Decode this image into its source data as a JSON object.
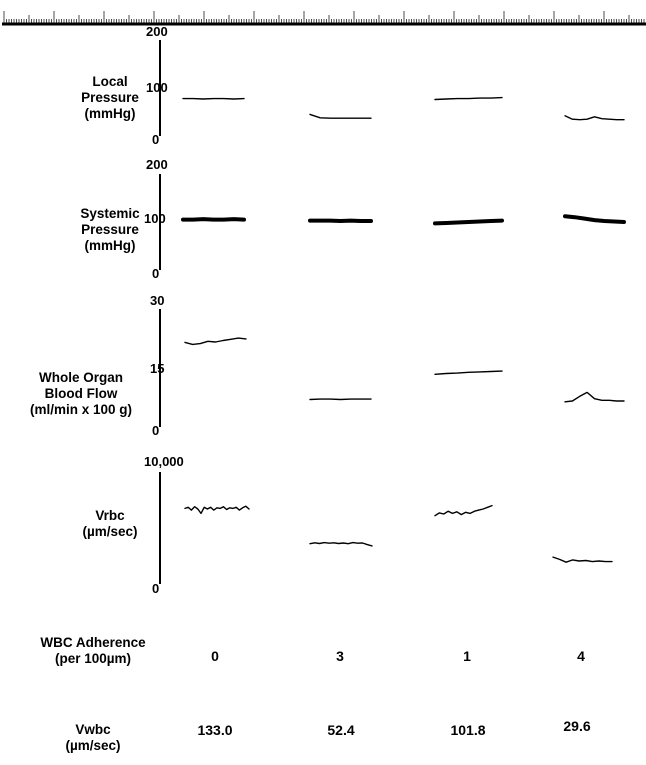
{
  "chart_data": {
    "type": "line",
    "columns": 4,
    "panels": [
      {
        "id": "local",
        "label": [
          "Local",
          "Pressure",
          "(mmHg)"
        ],
        "ticks": [
          {
            "label": "200",
            "value": 200
          },
          {
            "label": "100",
            "value": 100
          },
          {
            "label": "0",
            "value": 0
          }
        ],
        "ylim": [
          0,
          200
        ],
        "stroke": 1.4,
        "series": [
          {
            "y": [
              78,
              78,
              77,
              78,
              78,
              77,
              78
            ]
          },
          {
            "y": [
              45,
              38,
              37,
              37,
              37,
              37,
              37
            ]
          },
          {
            "y": [
              76,
              77,
              78,
              78,
              79,
              79,
              80
            ]
          },
          {
            "y": [
              42,
              35,
              34,
              35,
              40,
              36,
              35,
              34,
              34
            ]
          }
        ]
      },
      {
        "id": "systemic",
        "label": [
          "Systemic",
          "Pressure",
          "(mmHg)"
        ],
        "ticks": [
          {
            "label": "200",
            "value": 200
          },
          {
            "label": "100",
            "value": 100
          },
          {
            "label": "0",
            "value": 0
          }
        ],
        "ylim": [
          0,
          200
        ],
        "stroke": 4,
        "series": [
          {
            "y": [
              105,
              105,
              106,
              105,
              105,
              106,
              105
            ]
          },
          {
            "y": [
              103,
              103,
              103,
              102,
              103,
              102,
              102
            ]
          },
          {
            "y": [
              97,
              98,
              99,
              100,
              101,
              102,
              103
            ]
          },
          {
            "y": [
              112,
              110,
              107,
              104,
              102,
              101,
              100
            ]
          }
        ]
      },
      {
        "id": "flow",
        "label": [
          "Whole Organ",
          "Blood Flow",
          "(ml/min x 100 g)"
        ],
        "ticks": [
          {
            "label": "30",
            "value": 30
          },
          {
            "label": "15",
            "value": 15
          },
          {
            "label": "0",
            "value": 0
          }
        ],
        "ylim": [
          0,
          30
        ],
        "stroke": 1.4,
        "series": [
          {
            "y": [
              21.5,
              21.0,
              21.2,
              21.8,
              21.6,
              22.0,
              22.3,
              22.6,
              22.4
            ]
          },
          {
            "y": [
              7.0,
              7.1,
              7.1,
              7.0,
              7.1,
              7.1,
              7.1
            ]
          },
          {
            "y": [
              13.4,
              13.6,
              13.7,
              13.9,
              14.0,
              14.1,
              14.2
            ]
          },
          {
            "y": [
              6.4,
              6.6,
              7.8,
              8.8,
              7.2,
              6.8,
              6.8,
              6.6,
              6.6
            ]
          }
        ]
      },
      {
        "id": "vrbc",
        "label": [
          "Vrbc",
          "(µm/sec)"
        ],
        "ticks": [
          {
            "label": "10,000",
            "value": 10000
          },
          {
            "label": "0",
            "value": 0
          }
        ],
        "ylim": [
          0,
          10000
        ],
        "stroke": 1.4,
        "series": [
          {
            "y": [
              6750,
              6850,
              6600,
              6900,
              6700,
              6300,
              6850,
              6700,
              6850,
              6600,
              6800,
              6750,
              6900,
              6650,
              6800,
              6750,
              6850,
              6600,
              6800,
              6950,
              6700
            ]
          },
          {
            "y": [
              3600,
              3680,
              3620,
              3700,
              3640,
              3680,
              3620,
              3660,
              3600,
              3700,
              3640,
              3660,
              3520,
              3400
            ]
          },
          {
            "y": [
              6100,
              6350,
              6250,
              6500,
              6300,
              6450,
              6200,
              6400,
              6300,
              6500,
              6600,
              6700,
              6850,
              7000
            ]
          },
          {
            "y": [
              2400,
              2200,
              1950,
              2150,
              2050,
              2100,
              2000,
              2050,
              2000,
              2000
            ]
          }
        ]
      }
    ]
  },
  "rows": {
    "wbc": {
      "label": [
        "WBC Adherence",
        "(per 100µm)"
      ],
      "values": [
        "0",
        "3",
        "1",
        "4"
      ]
    },
    "vwbc": {
      "label": [
        "Vwbc",
        "(µm/sec)"
      ],
      "values": [
        "133.0",
        "52.4",
        "101.8",
        "29.6"
      ]
    }
  }
}
